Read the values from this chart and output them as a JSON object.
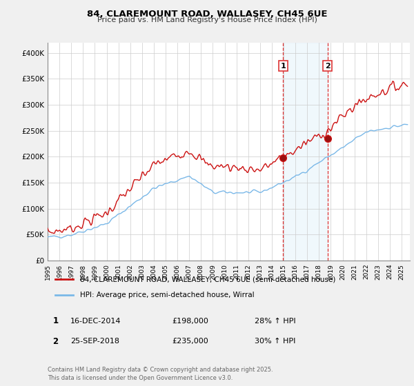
{
  "title_line1": "84, CLAREMOUNT ROAD, WALLASEY, CH45 6UE",
  "title_line2": "Price paid vs. HM Land Registry's House Price Index (HPI)",
  "ylabel_ticks": [
    "£0",
    "£50K",
    "£100K",
    "£150K",
    "£200K",
    "£250K",
    "£300K",
    "£350K",
    "£400K"
  ],
  "ytick_values": [
    0,
    50000,
    100000,
    150000,
    200000,
    250000,
    300000,
    350000,
    400000
  ],
  "ylim": [
    0,
    420000
  ],
  "xlim_start": 1995.3,
  "xlim_end": 2025.7,
  "xtick_years": [
    1995,
    1996,
    1997,
    1998,
    1999,
    2000,
    2001,
    2002,
    2003,
    2004,
    2005,
    2006,
    2007,
    2008,
    2009,
    2010,
    2011,
    2012,
    2013,
    2014,
    2015,
    2016,
    2017,
    2018,
    2019,
    2020,
    2021,
    2022,
    2023,
    2024,
    2025
  ],
  "hpi_color": "#7ab8e8",
  "price_color": "#cc1111",
  "sale1_x": 2014.96,
  "sale1_y": 198000,
  "sale2_x": 2018.73,
  "sale2_y": 235000,
  "vline_color": "#dd3333",
  "shade_color": "#d0e8f8",
  "legend_line1": "84, CLAREMOUNT ROAD, WALLASEY, CH45 6UE (semi-detached house)",
  "legend_line2": "HPI: Average price, semi-detached house, Wirral",
  "table_row1": [
    "1",
    "16-DEC-2014",
    "£198,000",
    "28% ↑ HPI"
  ],
  "table_row2": [
    "2",
    "25-SEP-2018",
    "£235,000",
    "30% ↑ HPI"
  ],
  "footer": "Contains HM Land Registry data © Crown copyright and database right 2025.\nThis data is licensed under the Open Government Licence v3.0.",
  "background_color": "#f0f0f0",
  "plot_bg_color": "#ffffff",
  "grid_color": "#cccccc"
}
